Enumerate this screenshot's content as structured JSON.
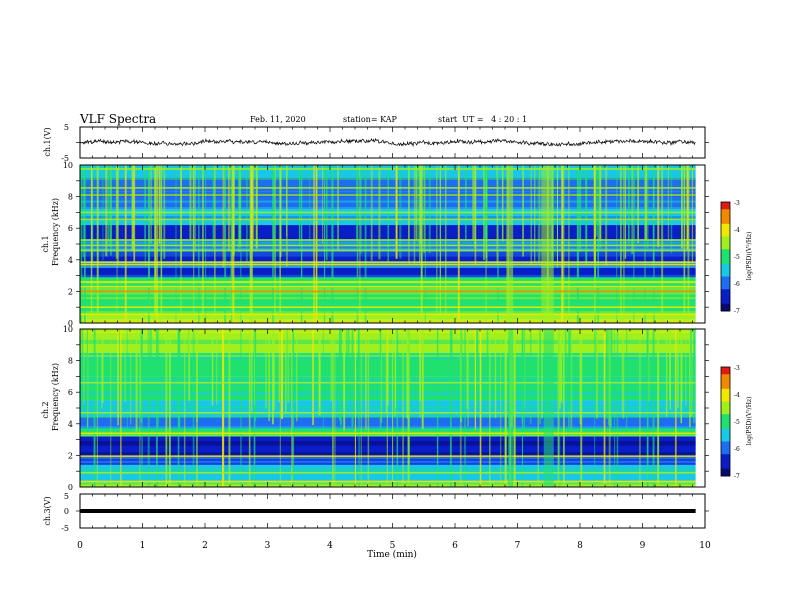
{
  "header": {
    "title": "VLF Spectra",
    "date": "Feb. 11, 2020",
    "station": "station= KAP",
    "start": "start  UT =   4 : 20 : 1"
  },
  "colors": {
    "colormap": [
      "#0a0a6e",
      "#0a1ec8",
      "#1f6df0",
      "#18c8e6",
      "#20e070",
      "#a0f020",
      "#f0e800",
      "#f08a00",
      "#e01a10",
      "#ffffff"
    ]
  },
  "chart_data": [
    {
      "type": "line",
      "panel": "ch1-voltage",
      "ylabel": "ch.1(V)",
      "ylim": [
        -5,
        5
      ],
      "yticks": [
        "5",
        "-5"
      ],
      "xlim": [
        0,
        10
      ],
      "grid": false,
      "x_end": 9.85,
      "baseline": 0,
      "amplitude": 1.0,
      "note_values": "noisy trace fluctuating roughly between -1.5 and +1.5 V"
    },
    {
      "type": "heatmap",
      "panel": "ch1-spectrogram",
      "ylabel_top": "ch.1",
      "ylabel": "Frequency (kHz)",
      "ylim": [
        0,
        10
      ],
      "yticks": [
        "0",
        "2",
        "4",
        "6",
        "8",
        "10"
      ],
      "xlim": [
        0,
        10
      ],
      "x_end": 9.85,
      "colorbar": {
        "label": "log(PSD)(V²/Hz)",
        "range": [
          -7,
          -3
        ],
        "ticks": [
          "-3",
          "-4",
          "-5",
          "-6",
          "-7"
        ]
      },
      "bands": [
        {
          "f0": 0.0,
          "f1": 0.2,
          "level": 5.2
        },
        {
          "f0": 0.2,
          "f1": 0.6,
          "level": 4.6
        },
        {
          "f0": 0.6,
          "f1": 1.2,
          "level": 4.4
        },
        {
          "f0": 1.2,
          "f1": 1.8,
          "level": 4.0
        },
        {
          "f0": 1.8,
          "f1": 2.5,
          "level": 4.3
        },
        {
          "f0": 2.5,
          "f1": 2.9,
          "level": 4.1
        },
        {
          "f0": 2.9,
          "f1": 3.5,
          "level": 0.8
        },
        {
          "f0": 3.5,
          "f1": 3.9,
          "level": 2.2
        },
        {
          "f0": 3.9,
          "f1": 4.5,
          "level": 0.9
        },
        {
          "f0": 4.5,
          "f1": 5.3,
          "level": 2.4
        },
        {
          "f0": 5.3,
          "f1": 6.2,
          "level": 1.4
        },
        {
          "f0": 6.2,
          "f1": 7.2,
          "level": 2.6
        },
        {
          "f0": 7.2,
          "f1": 8.3,
          "level": 2.0
        },
        {
          "f0": 8.3,
          "f1": 9.2,
          "level": 2.3
        },
        {
          "f0": 9.2,
          "f1": 10.0,
          "level": 2.7
        }
      ],
      "lines": [
        {
          "f": 0.55,
          "level": 6.0
        },
        {
          "f": 1.0,
          "level": 5.5
        },
        {
          "f": 2.0,
          "level": 6.6
        },
        {
          "f": 2.3,
          "level": 5.6
        },
        {
          "f": 2.6,
          "level": 6.0
        },
        {
          "f": 3.7,
          "level": 6.3
        },
        {
          "f": 3.85,
          "level": 5.8
        },
        {
          "f": 4.6,
          "level": 5.2
        },
        {
          "f": 4.9,
          "level": 5.0
        },
        {
          "f": 5.25,
          "level": 5.0
        },
        {
          "f": 6.55,
          "level": 5.2
        },
        {
          "f": 7.0,
          "level": 4.6
        },
        {
          "f": 8.1,
          "level": 4.6
        },
        {
          "f": 8.55,
          "level": 4.8
        },
        {
          "f": 9.75,
          "level": 4.8
        }
      ],
      "bursts": [
        {
          "t0": 6.82,
          "t1": 6.93,
          "level": 5.0
        },
        {
          "t0": 7.38,
          "t1": 7.58,
          "level": 5.2
        }
      ]
    },
    {
      "type": "heatmap",
      "panel": "ch2-spectrogram",
      "ylabel_top": "ch.2",
      "ylabel": "Frequency (kHz)",
      "ylim": [
        0,
        10
      ],
      "yticks": [
        "0",
        "2",
        "4",
        "6",
        "8",
        "10"
      ],
      "xlim": [
        0,
        10
      ],
      "x_end": 9.85,
      "colorbar": {
        "label": "log(PSD)(V²/Hz)",
        "range": [
          -7,
          -3
        ],
        "ticks": [
          "-3",
          "-4",
          "-5",
          "-6",
          "-7"
        ]
      },
      "bands": [
        {
          "f0": 0.0,
          "f1": 0.3,
          "level": 4.8
        },
        {
          "f0": 0.3,
          "f1": 1.4,
          "level": 3.0
        },
        {
          "f0": 1.4,
          "f1": 1.9,
          "level": 1.6
        },
        {
          "f0": 1.9,
          "f1": 3.2,
          "level": 0.7
        },
        {
          "f0": 3.2,
          "f1": 3.7,
          "level": 3.8
        },
        {
          "f0": 3.7,
          "f1": 4.4,
          "level": 2.2
        },
        {
          "f0": 4.4,
          "f1": 5.5,
          "level": 3.2
        },
        {
          "f0": 5.5,
          "f1": 7.0,
          "level": 3.6
        },
        {
          "f0": 7.0,
          "f1": 8.5,
          "level": 4.0
        },
        {
          "f0": 8.5,
          "f1": 10.0,
          "level": 4.5
        }
      ],
      "lines": [
        {
          "f": 0.35,
          "level": 6.2
        },
        {
          "f": 0.9,
          "level": 5.4
        },
        {
          "f": 1.95,
          "level": 6.0
        },
        {
          "f": 3.4,
          "level": 5.6
        },
        {
          "f": 4.7,
          "level": 5.0
        },
        {
          "f": 6.6,
          "level": 4.8
        }
      ],
      "bursts": [
        {
          "t0": 6.85,
          "t1": 6.93,
          "level": 3.8
        },
        {
          "t0": 7.42,
          "t1": 7.58,
          "level": 4.0
        }
      ]
    },
    {
      "type": "line",
      "panel": "ch3-voltage",
      "ylabel": "ch.3(V)",
      "ylim": [
        -5,
        5
      ],
      "yticks": [
        "5",
        "0",
        "-5"
      ],
      "xlim": [
        0,
        10
      ],
      "xlabel": "Time (min)",
      "xticks": [
        "0",
        "1",
        "2",
        "3",
        "4",
        "5",
        "6",
        "7",
        "8",
        "9",
        "10"
      ],
      "x_end": 9.85,
      "constant": 0
    }
  ]
}
